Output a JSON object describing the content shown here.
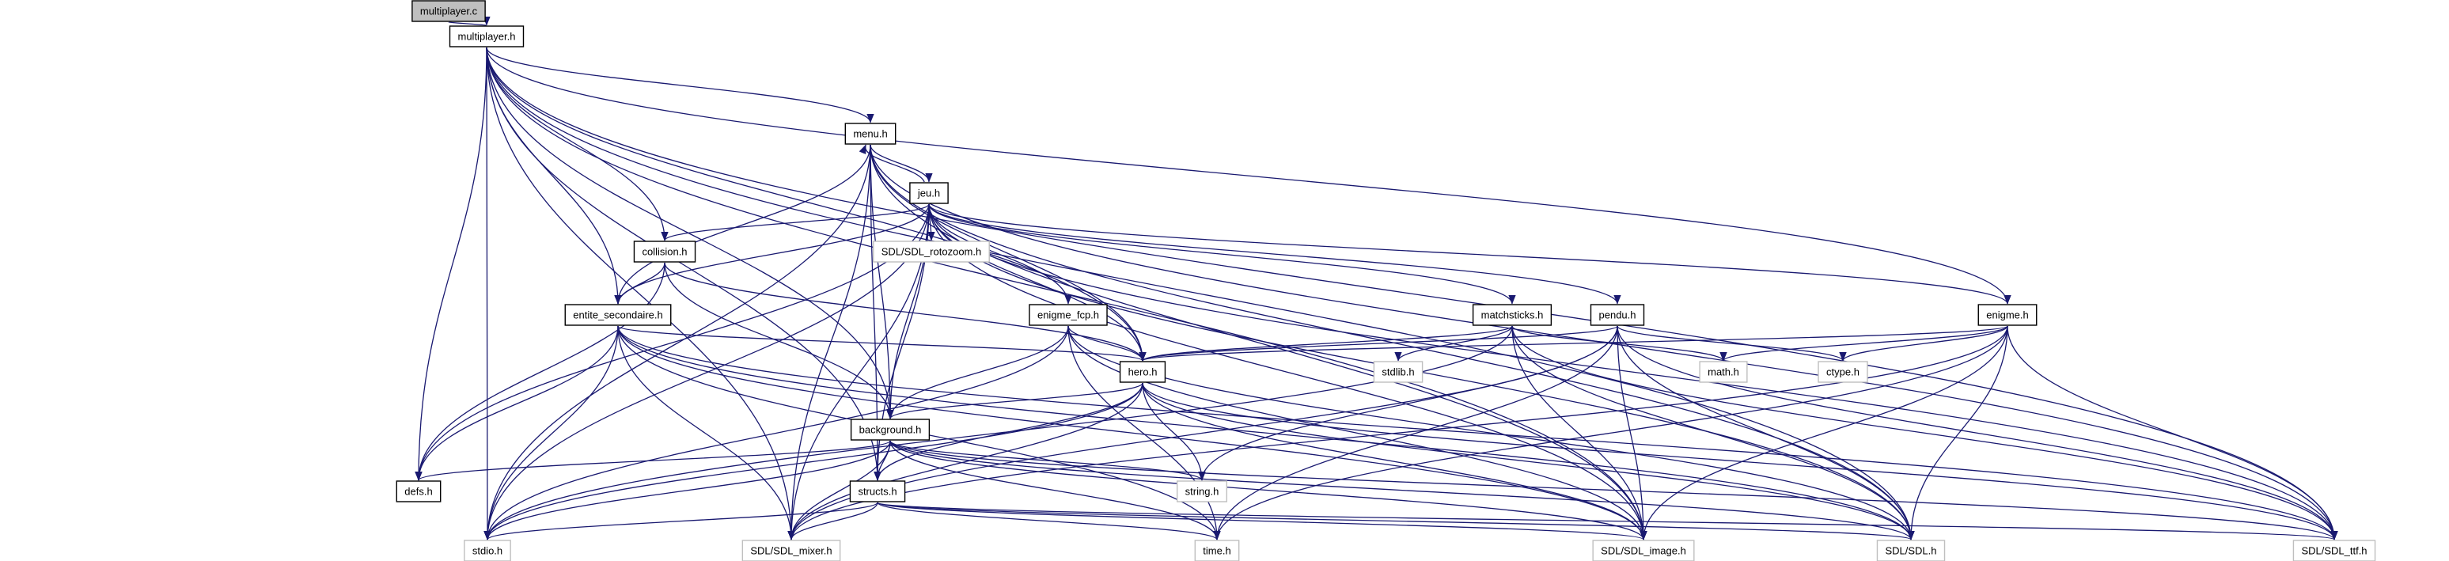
{
  "colors": {
    "edge": "#191970",
    "local_border": "#000000",
    "system_border": "#bfbfbf",
    "focus_fill": "#bfbfbf",
    "fill": "#ffffff"
  },
  "nodes": [
    {
      "id": "multiplayer_c",
      "label": "multiplayer.c",
      "kind": "focus"
    },
    {
      "id": "multiplayer_h",
      "label": "multiplayer.h",
      "kind": "local"
    },
    {
      "id": "menu_h",
      "label": "menu.h",
      "kind": "local"
    },
    {
      "id": "jeu_h",
      "label": "jeu.h",
      "kind": "local"
    },
    {
      "id": "collision_h",
      "label": "collision.h",
      "kind": "local"
    },
    {
      "id": "entite_h",
      "label": "entite_secondaire.h",
      "kind": "local"
    },
    {
      "id": "rotozoom_h",
      "label": "SDL/SDL_rotozoom.h",
      "kind": "system"
    },
    {
      "id": "enigme_fcp_h",
      "label": "enigme_fcp.h",
      "kind": "local"
    },
    {
      "id": "matchsticks_h",
      "label": "matchsticks.h",
      "kind": "local"
    },
    {
      "id": "pendu_h",
      "label": "pendu.h",
      "kind": "local"
    },
    {
      "id": "enigme_h",
      "label": "enigme.h",
      "kind": "local"
    },
    {
      "id": "hero_h",
      "label": "hero.h",
      "kind": "local"
    },
    {
      "id": "stdlib_h",
      "label": "stdlib.h",
      "kind": "system"
    },
    {
      "id": "math_h",
      "label": "math.h",
      "kind": "system"
    },
    {
      "id": "ctype_h",
      "label": "ctype.h",
      "kind": "system"
    },
    {
      "id": "background_h",
      "label": "background.h",
      "kind": "local"
    },
    {
      "id": "defs_h",
      "label": "defs.h",
      "kind": "local"
    },
    {
      "id": "string_h",
      "label": "string.h",
      "kind": "system"
    },
    {
      "id": "structs_h",
      "label": "structs.h",
      "kind": "local"
    },
    {
      "id": "stdio_h",
      "label": "stdio.h",
      "kind": "system"
    },
    {
      "id": "mixer_h",
      "label": "SDL/SDL_mixer.h",
      "kind": "system"
    },
    {
      "id": "time_h",
      "label": "time.h",
      "kind": "system"
    },
    {
      "id": "image_h",
      "label": "SDL/SDL_image.h",
      "kind": "system"
    },
    {
      "id": "sdl_h",
      "label": "SDL/SDL.h",
      "kind": "system"
    },
    {
      "id": "ttf_h",
      "label": "SDL/SDL_ttf.h",
      "kind": "system"
    }
  ],
  "edges": [
    [
      "multiplayer_c",
      "multiplayer_h"
    ],
    [
      "multiplayer_h",
      "menu_h"
    ],
    [
      "multiplayer_h",
      "collision_h"
    ],
    [
      "multiplayer_h",
      "entite_h"
    ],
    [
      "multiplayer_h",
      "enigme_h"
    ],
    [
      "multiplayer_h",
      "hero_h"
    ],
    [
      "multiplayer_h",
      "background_h"
    ],
    [
      "multiplayer_h",
      "defs_h"
    ],
    [
      "multiplayer_h",
      "structs_h"
    ],
    [
      "multiplayer_h",
      "stdio_h"
    ],
    [
      "multiplayer_h",
      "mixer_h"
    ],
    [
      "multiplayer_h",
      "image_h"
    ],
    [
      "multiplayer_h",
      "sdl_h"
    ],
    [
      "multiplayer_h",
      "ttf_h"
    ],
    [
      "menu_h",
      "jeu_h"
    ],
    [
      "menu_h",
      "entite_h"
    ],
    [
      "menu_h",
      "hero_h"
    ],
    [
      "menu_h",
      "background_h"
    ],
    [
      "menu_h",
      "structs_h"
    ],
    [
      "menu_h",
      "stdio_h"
    ],
    [
      "menu_h",
      "mixer_h"
    ],
    [
      "menu_h",
      "image_h"
    ],
    [
      "menu_h",
      "sdl_h"
    ],
    [
      "menu_h",
      "ttf_h"
    ],
    [
      "jeu_h",
      "menu_h"
    ],
    [
      "jeu_h",
      "collision_h"
    ],
    [
      "jeu_h",
      "entite_h"
    ],
    [
      "jeu_h",
      "rotozoom_h"
    ],
    [
      "jeu_h",
      "enigme_fcp_h"
    ],
    [
      "jeu_h",
      "matchsticks_h"
    ],
    [
      "jeu_h",
      "pendu_h"
    ],
    [
      "jeu_h",
      "enigme_h"
    ],
    [
      "jeu_h",
      "hero_h"
    ],
    [
      "jeu_h",
      "background_h"
    ],
    [
      "jeu_h",
      "defs_h"
    ],
    [
      "jeu_h",
      "structs_h"
    ],
    [
      "jeu_h",
      "stdio_h"
    ],
    [
      "jeu_h",
      "mixer_h"
    ],
    [
      "jeu_h",
      "image_h"
    ],
    [
      "jeu_h",
      "sdl_h"
    ],
    [
      "jeu_h",
      "ttf_h"
    ],
    [
      "collision_h",
      "entite_h"
    ],
    [
      "collision_h",
      "hero_h"
    ],
    [
      "collision_h",
      "background_h"
    ],
    [
      "collision_h",
      "defs_h"
    ],
    [
      "entite_h",
      "hero_h"
    ],
    [
      "entite_h",
      "defs_h"
    ],
    [
      "entite_h",
      "stdio_h"
    ],
    [
      "entite_h",
      "mixer_h"
    ],
    [
      "entite_h",
      "time_h"
    ],
    [
      "entite_h",
      "image_h"
    ],
    [
      "entite_h",
      "sdl_h"
    ],
    [
      "entite_h",
      "ttf_h"
    ],
    [
      "enigme_fcp_h",
      "hero_h"
    ],
    [
      "enigme_fcp_h",
      "background_h"
    ],
    [
      "enigme_fcp_h",
      "stdio_h"
    ],
    [
      "enigme_fcp_h",
      "time_h"
    ],
    [
      "enigme_fcp_h",
      "image_h"
    ],
    [
      "enigme_fcp_h",
      "sdl_h"
    ],
    [
      "matchsticks_h",
      "hero_h"
    ],
    [
      "matchsticks_h",
      "stdlib_h"
    ],
    [
      "matchsticks_h",
      "math_h"
    ],
    [
      "matchsticks_h",
      "stdio_h"
    ],
    [
      "matchsticks_h",
      "image_h"
    ],
    [
      "matchsticks_h",
      "sdl_h"
    ],
    [
      "matchsticks_h",
      "ttf_h"
    ],
    [
      "pendu_h",
      "hero_h"
    ],
    [
      "pendu_h",
      "ctype_h"
    ],
    [
      "pendu_h",
      "string_h"
    ],
    [
      "pendu_h",
      "mixer_h"
    ],
    [
      "pendu_h",
      "time_h"
    ],
    [
      "pendu_h",
      "image_h"
    ],
    [
      "pendu_h",
      "sdl_h"
    ],
    [
      "pendu_h",
      "ttf_h"
    ],
    [
      "enigme_h",
      "hero_h"
    ],
    [
      "enigme_h",
      "math_h"
    ],
    [
      "enigme_h",
      "ctype_h"
    ],
    [
      "enigme_h",
      "mixer_h"
    ],
    [
      "enigme_h",
      "time_h"
    ],
    [
      "enigme_h",
      "image_h"
    ],
    [
      "enigme_h",
      "sdl_h"
    ],
    [
      "enigme_h",
      "ttf_h"
    ],
    [
      "hero_h",
      "background_h"
    ],
    [
      "hero_h",
      "structs_h"
    ],
    [
      "hero_h",
      "string_h"
    ],
    [
      "hero_h",
      "stdio_h"
    ],
    [
      "hero_h",
      "mixer_h"
    ],
    [
      "hero_h",
      "image_h"
    ],
    [
      "hero_h",
      "sdl_h"
    ],
    [
      "hero_h",
      "ttf_h"
    ],
    [
      "background_h",
      "defs_h"
    ],
    [
      "background_h",
      "structs_h"
    ],
    [
      "background_h",
      "string_h"
    ],
    [
      "background_h",
      "stdio_h"
    ],
    [
      "background_h",
      "mixer_h"
    ],
    [
      "background_h",
      "time_h"
    ],
    [
      "background_h",
      "image_h"
    ],
    [
      "background_h",
      "sdl_h"
    ],
    [
      "background_h",
      "ttf_h"
    ],
    [
      "structs_h",
      "stdio_h"
    ],
    [
      "structs_h",
      "mixer_h"
    ],
    [
      "structs_h",
      "time_h"
    ],
    [
      "structs_h",
      "image_h"
    ],
    [
      "structs_h",
      "sdl_h"
    ],
    [
      "structs_h",
      "ttf_h"
    ]
  ]
}
